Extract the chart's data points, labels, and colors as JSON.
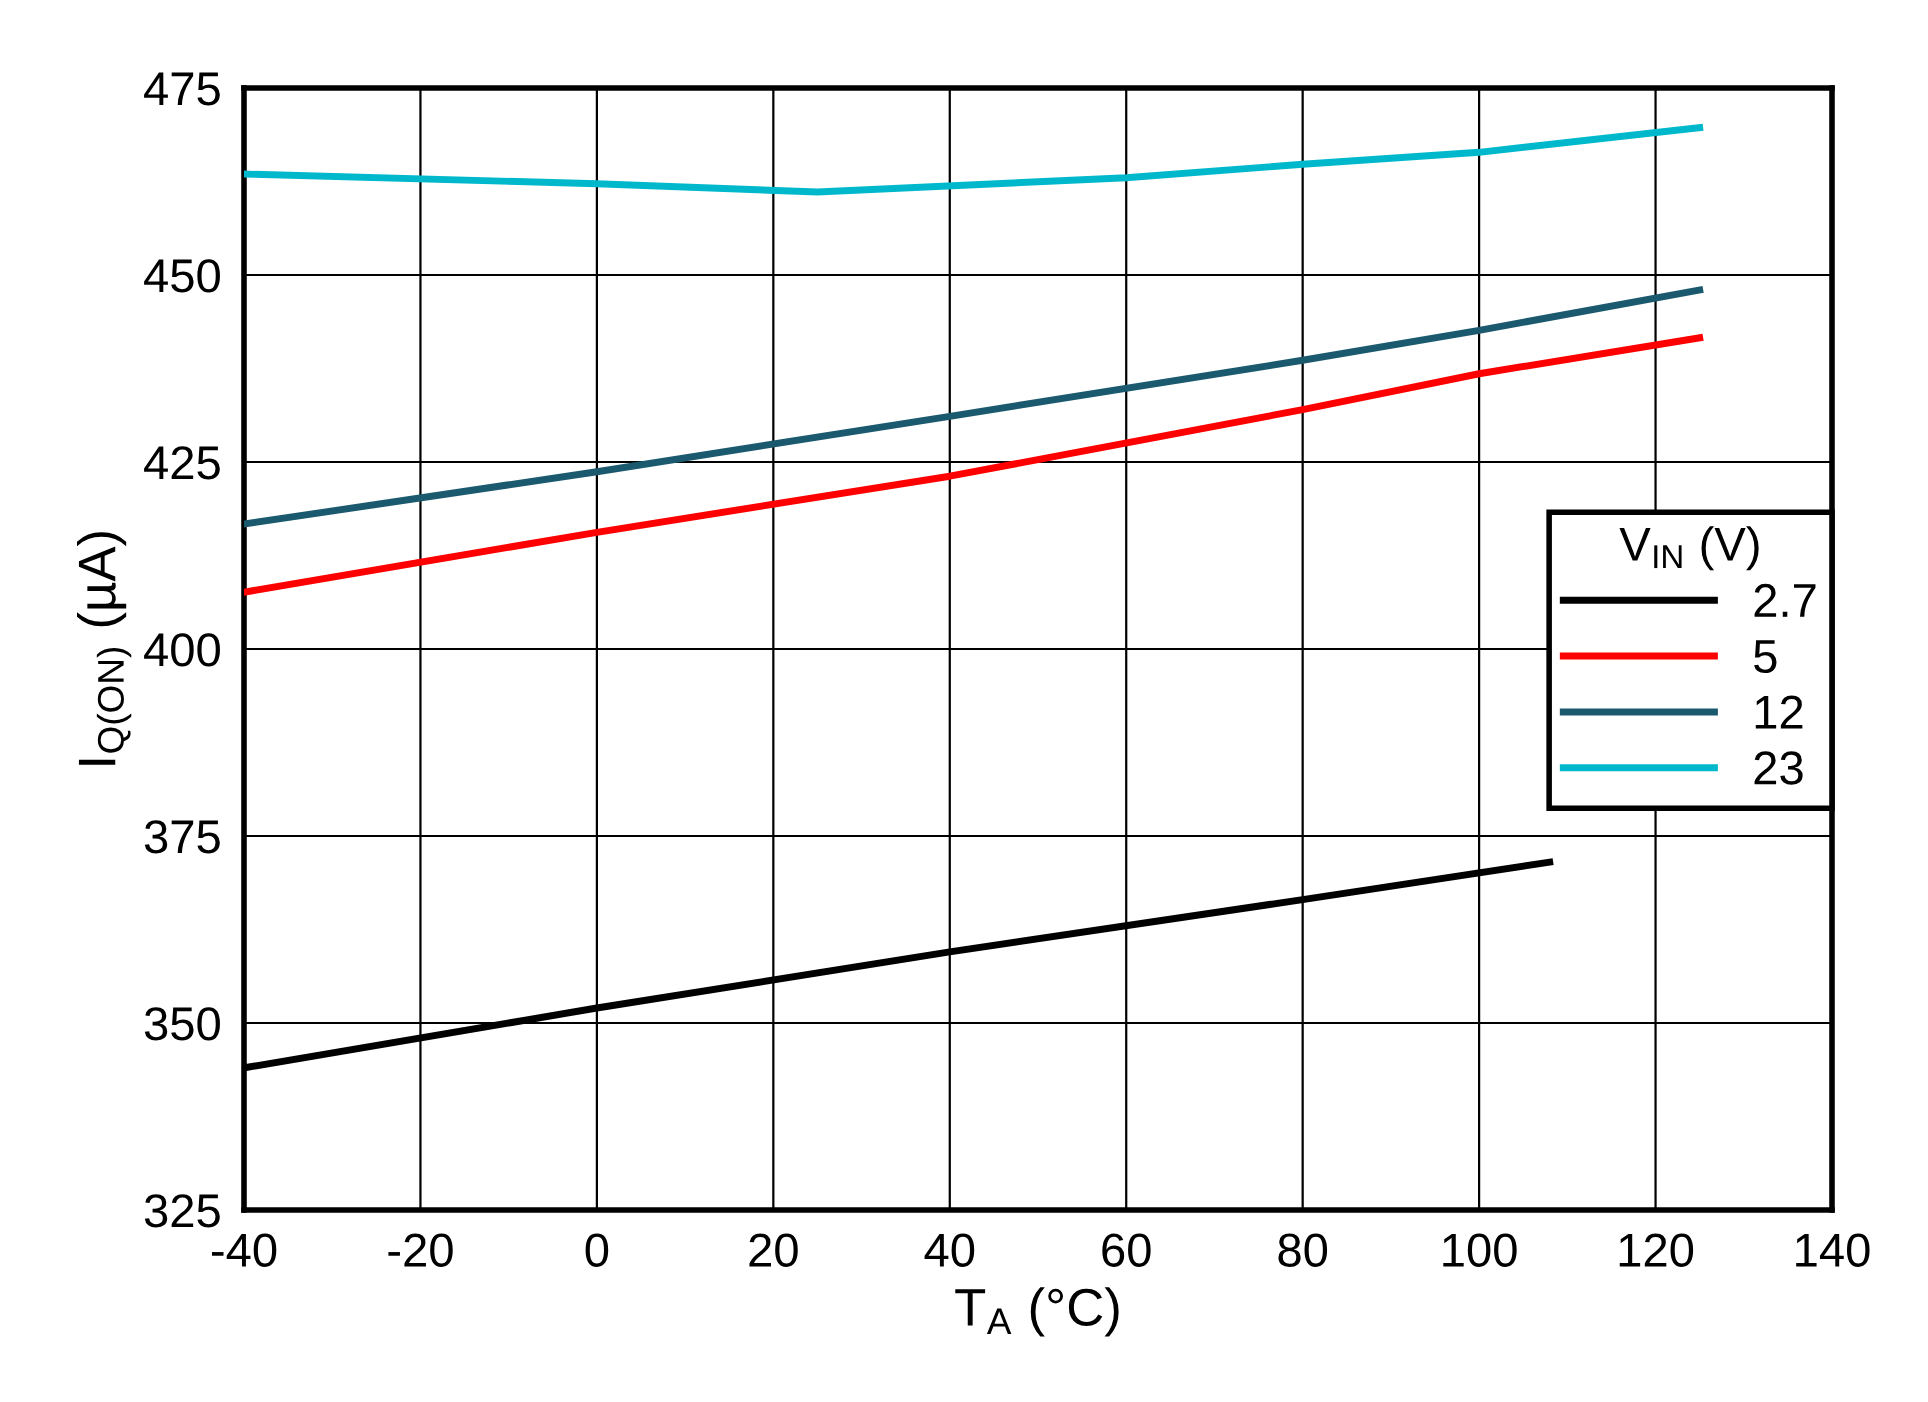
{
  "chart_data": {
    "type": "line",
    "xlabel": "T$_{A}$ (°C)",
    "ylabel": "I$_{Q(ON)}$ (µA)",
    "legend_title": "V$_{IN}$ (V)",
    "xlim": [
      -40,
      140
    ],
    "xticks": [
      -40,
      -20,
      0,
      20,
      40,
      60,
      80,
      100,
      120,
      140
    ],
    "ylim": [
      325,
      475
    ],
    "yticks": [
      325,
      350,
      375,
      400,
      425,
      450,
      475
    ],
    "grid": true,
    "legend": "right",
    "marker": "none",
    "line_style": "solid",
    "series": [
      {
        "name": "2.7",
        "color": "#000000",
        "x": [
          -40,
          0,
          40,
          80,
          108
        ],
        "values": [
          344,
          352,
          359.5,
          366.5,
          371.5
        ]
      },
      {
        "name": "5",
        "color": "#ff0000",
        "x": [
          -40,
          0,
          40,
          80,
          100,
          125
        ],
        "values": [
          407.6,
          415.6,
          423.1,
          432,
          436.8,
          441.6
        ]
      },
      {
        "name": "12",
        "color": "#1b5a6e",
        "x": [
          -40,
          0,
          40,
          80,
          100,
          125
        ],
        "values": [
          416.7,
          423.7,
          431.1,
          438.6,
          442.6,
          448
        ]
      },
      {
        "name": "23",
        "color": "#00b8cc",
        "x": [
          -40,
          0,
          25,
          60,
          80,
          100,
          125
        ],
        "values": [
          463.5,
          462.2,
          461.1,
          463,
          464.8,
          466.4,
          469.7
        ]
      }
    ]
  }
}
